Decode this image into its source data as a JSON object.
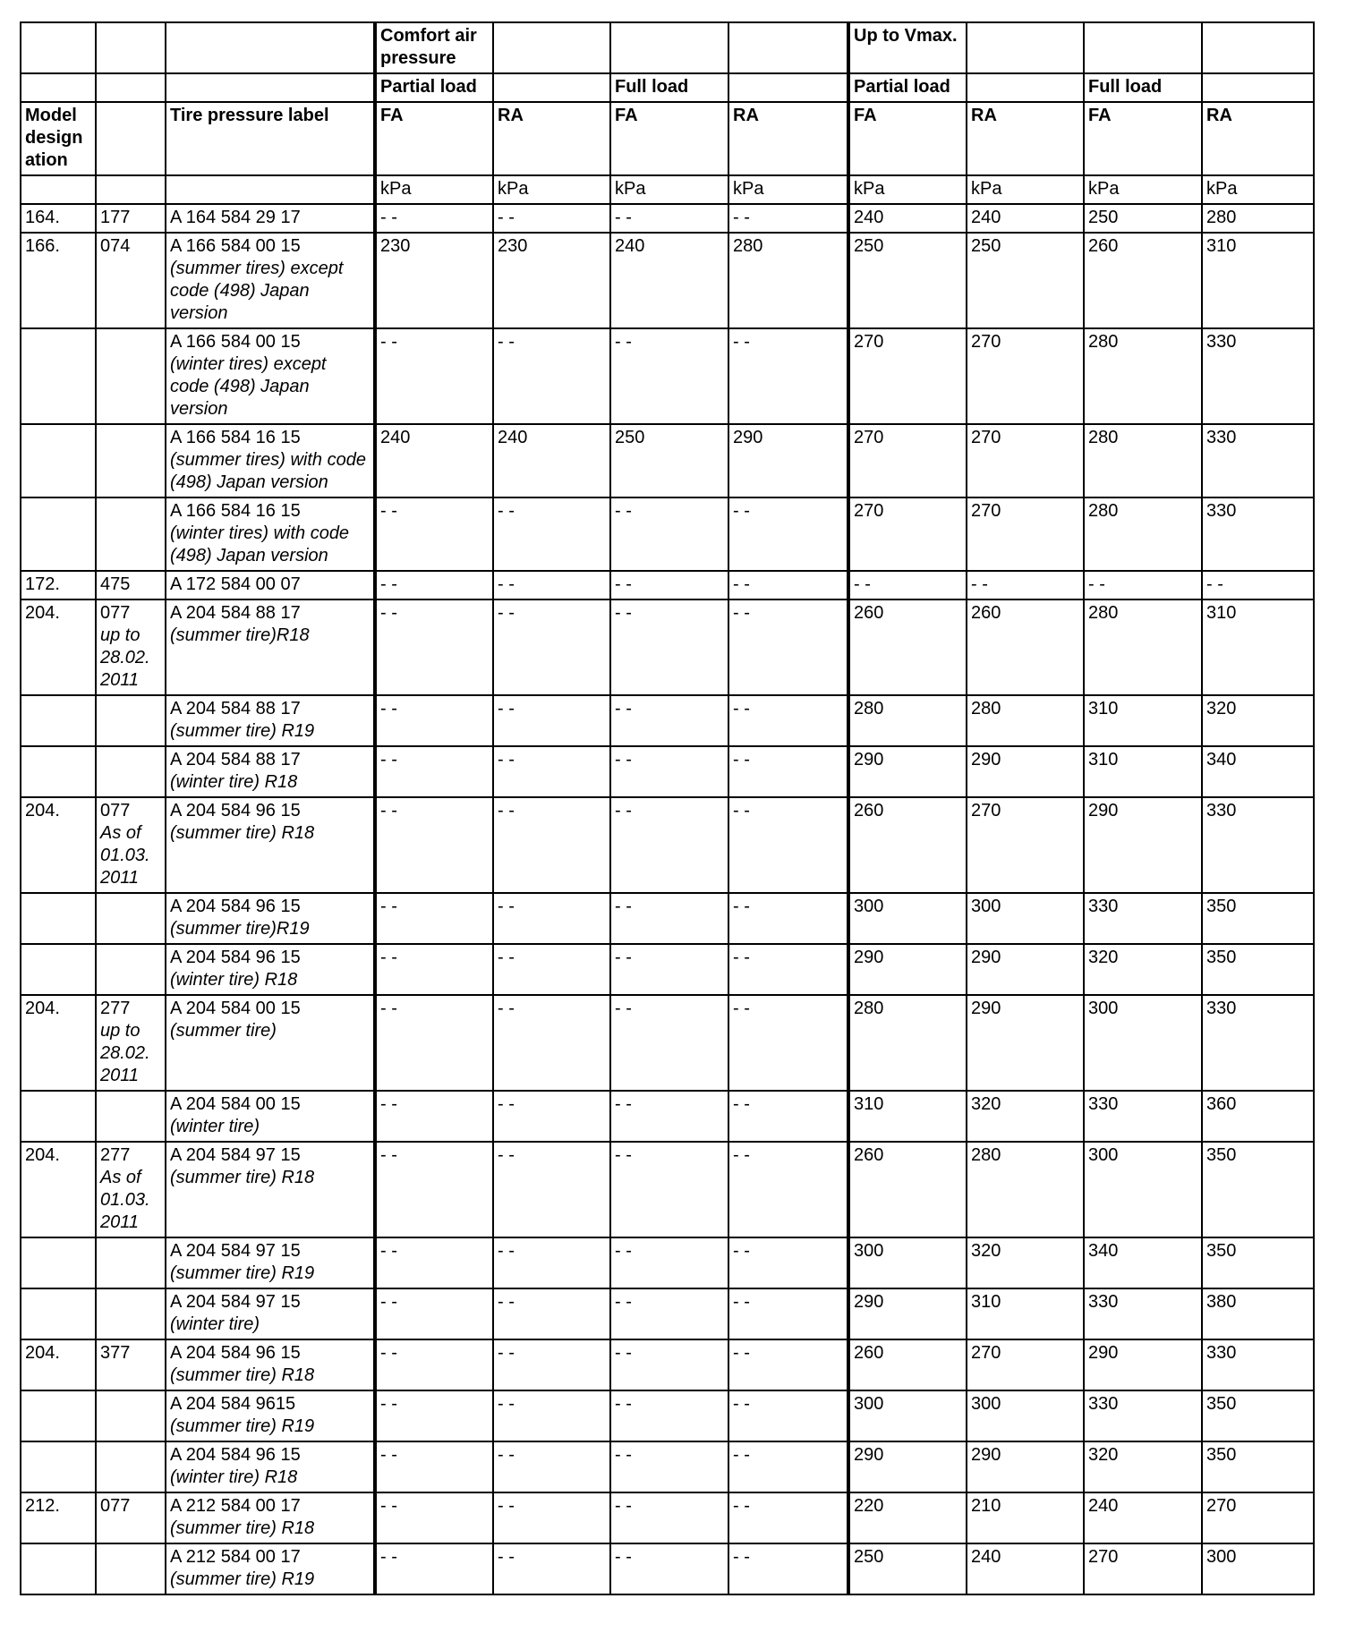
{
  "header": {
    "row1": {
      "comfort": "Comfort air pressure",
      "vmax": "Up to Vmax."
    },
    "row2": {
      "partial_load_1": "Partial load",
      "full_load_1": "Full load",
      "partial_load_2": "Partial load",
      "full_load_2": "Full load"
    },
    "row3": {
      "model": "Model designation",
      "label": "Tire pressure label",
      "axles": [
        "FA",
        "RA",
        "FA",
        "RA",
        "FA",
        "RA",
        "FA",
        "RA"
      ]
    },
    "units": [
      "kPa",
      "kPa",
      "kPa",
      "kPa",
      "kPa",
      "kPa",
      "kPa",
      "kPa"
    ]
  },
  "rows": [
    {
      "model": "164.",
      "code": "177",
      "code_note": [],
      "label": "A 164 584 29 17",
      "label_note": "",
      "values": [
        "- -",
        "- -",
        "- -",
        "- -",
        "240",
        "240",
        "250",
        "280"
      ]
    },
    {
      "model": "166.",
      "code": "074",
      "code_note": [],
      "label": "A 166 584 00 15",
      "label_note": "(summer tires) except code (498) Japan version",
      "values": [
        "230",
        "230",
        "240",
        "280",
        "250",
        "250",
        "260",
        "310"
      ]
    },
    {
      "model": "",
      "code": "",
      "code_note": [],
      "label": "A 166 584 00 15",
      "label_note": "(winter tires) except code (498) Japan version",
      "values": [
        "- -",
        "- -",
        "- -",
        "- -",
        "270",
        "270",
        "280",
        "330"
      ]
    },
    {
      "model": "",
      "code": "",
      "code_note": [],
      "label": "A 166 584 16 15",
      "label_note": "(summer tires) with code (498) Japan version",
      "values": [
        "240",
        "240",
        "250",
        "290",
        "270",
        "270",
        "280",
        "330"
      ]
    },
    {
      "model": "",
      "code": "",
      "code_note": [],
      "label": "A 166 584 16 15",
      "label_note": "(winter tires) with code (498) Japan version",
      "values": [
        "- -",
        "- -",
        "- -",
        "- -",
        "270",
        "270",
        "280",
        "330"
      ]
    },
    {
      "model": "172.",
      "code": "475",
      "code_note": [],
      "label": "A 172 584 00 07",
      "label_note": "",
      "values": [
        "- -",
        "- -",
        "- -",
        "- -",
        "- -",
        "- -",
        "- -",
        "- -"
      ]
    },
    {
      "model": "204.",
      "code": "077",
      "code_note": [
        "up to",
        "28.02.",
        "2011"
      ],
      "label": "A 204 584 88 17",
      "label_note": "(summer tire)R18",
      "values": [
        "- -",
        "- -",
        "- -",
        "- -",
        "260",
        "260",
        "280",
        "310"
      ]
    },
    {
      "model": "",
      "code": "",
      "code_note": [],
      "label": "A 204 584 88 17",
      "label_note": "(summer tire) R19",
      "values": [
        "- -",
        "- -",
        "- -",
        "- -",
        "280",
        "280",
        "310",
        "320"
      ]
    },
    {
      "model": "",
      "code": "",
      "code_note": [],
      "label": "A 204 584 88 17",
      "label_note": "(winter tire) R18",
      "values": [
        "- -",
        "- -",
        "- -",
        "- -",
        "290",
        "290",
        "310",
        "340"
      ]
    },
    {
      "model": "204.",
      "code": "077",
      "code_note": [
        "As of",
        "01.03.",
        "2011"
      ],
      "label": "A 204 584 96 15",
      "label_note": "(summer tire) R18",
      "values": [
        "- -",
        "- -",
        "- -",
        "- -",
        "260",
        "270",
        "290",
        "330"
      ]
    },
    {
      "model": "",
      "code": "",
      "code_note": [],
      "label": "A 204 584 96 15",
      "label_note": "(summer tire)R19",
      "values": [
        "- -",
        "- -",
        "- -",
        "- -",
        "300",
        "300",
        "330",
        "350"
      ]
    },
    {
      "model": "",
      "code": "",
      "code_note": [],
      "label": "A 204 584 96 15",
      "label_note": "(winter tire) R18",
      "values": [
        "- -",
        "- -",
        "- -",
        "- -",
        "290",
        "290",
        "320",
        "350"
      ]
    },
    {
      "model": "204.",
      "code": "277",
      "code_note": [
        "up to",
        "28.02.",
        "2011"
      ],
      "label": "A 204 584 00 15",
      "label_note": "(summer tire)",
      "values": [
        "- -",
        "- -",
        "- -",
        "- -",
        "280",
        "290",
        "300",
        "330"
      ]
    },
    {
      "model": "",
      "code": "",
      "code_note": [],
      "label": "A 204 584 00 15",
      "label_note": "(winter tire)",
      "values": [
        "- -",
        "- -",
        "- -",
        "- -",
        "310",
        "320",
        "330",
        "360"
      ]
    },
    {
      "model": "204.",
      "code": "277",
      "code_note": [
        "As of",
        "01.03.",
        "2011"
      ],
      "label": "A 204 584 97 15",
      "label_note": "(summer tire) R18",
      "values": [
        "- -",
        "- -",
        "- -",
        "- -",
        "260",
        "280",
        "300",
        "350"
      ]
    },
    {
      "model": "",
      "code": "",
      "code_note": [],
      "label": "A 204 584 97 15",
      "label_note": "(summer tire) R19",
      "values": [
        "- -",
        "- -",
        "- -",
        "- -",
        "300",
        "320",
        "340",
        "350"
      ]
    },
    {
      "model": "",
      "code": "",
      "code_note": [],
      "label": "A 204 584 97 15",
      "label_note": "(winter tire)",
      "values": [
        "- -",
        "- -",
        "- -",
        "- -",
        "290",
        "310",
        "330",
        "380"
      ]
    },
    {
      "model": "204.",
      "code": "377",
      "code_note": [],
      "label": "A 204 584 96 15",
      "label_note": "(summer tire) R18",
      "values": [
        "- -",
        "- -",
        "- -",
        "- -",
        "260",
        "270",
        "290",
        "330"
      ]
    },
    {
      "model": "",
      "code": "",
      "code_note": [],
      "label": "A 204 584 9615",
      "label_note": "(summer tire) R19",
      "values": [
        "- -",
        "- -",
        "- -",
        "- -",
        "300",
        "300",
        "330",
        "350"
      ]
    },
    {
      "model": "",
      "code": "",
      "code_note": [],
      "label": "A 204 584 96 15",
      "label_note": "(winter tire) R18",
      "values": [
        "- -",
        "- -",
        "- -",
        "- -",
        "290",
        "290",
        "320",
        "350"
      ]
    },
    {
      "model": "212.",
      "code": "077",
      "code_note": [],
      "label": "A 212 584 00 17",
      "label_note": "(summer tire) R18",
      "values": [
        "- -",
        "- -",
        "- -",
        "- -",
        "220",
        "210",
        "240",
        "270"
      ]
    },
    {
      "model": "",
      "code": "",
      "code_note": [],
      "label": "A 212 584 00 17",
      "label_note": "(summer tire) R19",
      "values": [
        "- -",
        "- -",
        "- -",
        "- -",
        "250",
        "240",
        "270",
        "300"
      ]
    }
  ]
}
